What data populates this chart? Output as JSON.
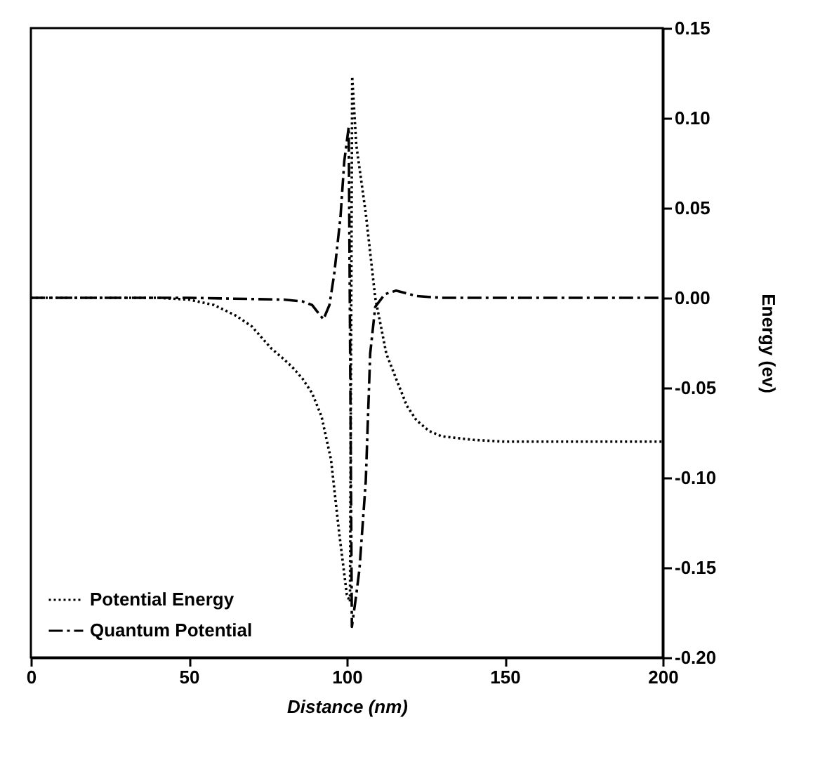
{
  "chart_data": {
    "type": "line",
    "xlabel": "Distance (nm)",
    "ylabel": "Energy (ev)",
    "xlim": [
      0,
      200
    ],
    "xticks": [
      0,
      50,
      100,
      150,
      200
    ],
    "ylim": [
      -0.2,
      0.15
    ],
    "yticks": [
      {
        "value": -0.2,
        "label": "-0.20"
      },
      {
        "value": -0.15,
        "label": "-0.15"
      },
      {
        "value": -0.1,
        "label": "-0.10"
      },
      {
        "value": -0.05,
        "label": "-0.05"
      },
      {
        "value": 0,
        "label": "0.00"
      },
      {
        "value": 0.05,
        "label": "0.05"
      },
      {
        "value": 0.1,
        "label": "0.10"
      },
      {
        "value": 0.15,
        "label": "0.15"
      }
    ],
    "grid": false,
    "legend": "bottom left",
    "marker": "none",
    "series": [
      {
        "name": "Potential Energy",
        "color": "#000000",
        "line_style": "dotted",
        "x": [
          0,
          40,
          50,
          58,
          65,
          70,
          76,
          80,
          83,
          86,
          89,
          92,
          95,
          97.6,
          100,
          101,
          101.7,
          103,
          106,
          109,
          112.5,
          115.6,
          119,
          122,
          126,
          130,
          140,
          150,
          170,
          200
        ],
        "values": [
          0,
          0,
          -0.001,
          -0.004,
          -0.01,
          -0.016,
          -0.028,
          -0.034,
          -0.039,
          -0.045,
          -0.053,
          -0.066,
          -0.09,
          -0.131,
          -0.165,
          -0.169,
          0.123,
          0.085,
          0.047,
          0,
          -0.031,
          -0.045,
          -0.06,
          -0.068,
          -0.074,
          -0.077,
          -0.079,
          -0.08,
          -0.08,
          -0.08
        ]
      },
      {
        "name": "Quantum Potential",
        "color": "#000000",
        "line_style": "dashed",
        "x": [
          0,
          50,
          80,
          86,
          89,
          92.6,
          94.5,
          96,
          98,
          99.2,
          100.6,
          101.6,
          103,
          104,
          106,
          107.4,
          109,
          112,
          115.6,
          122,
          130,
          200
        ],
        "values": [
          0,
          0,
          -0.001,
          -0.002,
          -0.004,
          -0.012,
          -0.004,
          0.013,
          0.045,
          0.076,
          0.095,
          -0.183,
          -0.165,
          -0.151,
          -0.102,
          -0.031,
          -0.005,
          0.002,
          0.004,
          0.001,
          0,
          0
        ]
      }
    ]
  }
}
